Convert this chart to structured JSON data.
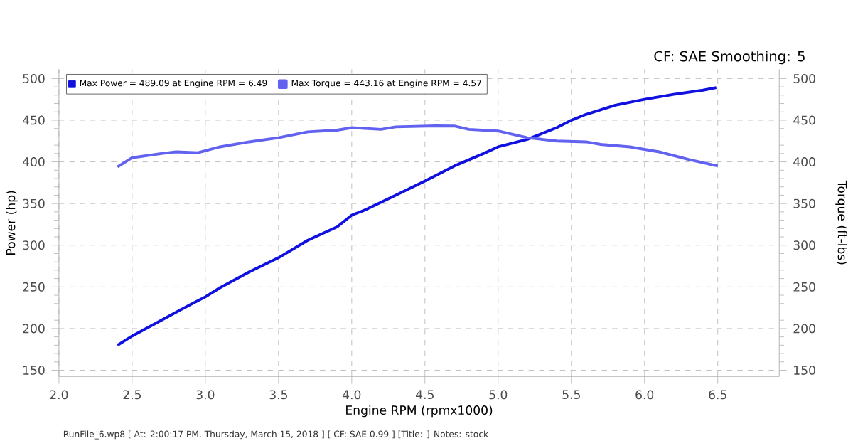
{
  "chart_data": {
    "type": "line",
    "title": "CF: SAE Smoothing: 5",
    "xlabel": "Engine RPM (rpmx1000)",
    "ylabel": "Power (hp)",
    "y2label": "Torque (ft-lbs)",
    "annotations": [
      "RunFile_6.wp8 [ At: 2:00:17 PM, Thursday, March 15, 2018 ] [ CF: SAE 0.99 ] [Title: ]  Notes: stock"
    ],
    "xlim": [
      2.0,
      6.92
    ],
    "ylim": [
      142.5,
      511
    ],
    "y2lim": [
      142.5,
      511
    ],
    "xticks": [
      {
        "value": 2.0,
        "label": "2.0"
      },
      {
        "value": 2.5,
        "label": "2.5"
      },
      {
        "value": 3.0,
        "label": "3.0"
      },
      {
        "value": 3.5,
        "label": "3.5"
      },
      {
        "value": 4.0,
        "label": "4.0"
      },
      {
        "value": 4.5,
        "label": "4.5"
      },
      {
        "value": 5.0,
        "label": "5.0"
      },
      {
        "value": 5.5,
        "label": "5.5"
      },
      {
        "value": 6.0,
        "label": "6.0"
      },
      {
        "value": 6.5,
        "label": "6.5"
      }
    ],
    "yticks": [
      150,
      200,
      250,
      300,
      350,
      400,
      450,
      500
    ],
    "y2ticks": [
      150,
      200,
      250,
      300,
      350,
      400,
      450,
      500
    ],
    "grid": true,
    "legend": "top left",
    "line_style": "solid",
    "series": [
      {
        "name": "Max Power = 489.09 at Engine RPM = 6.49",
        "color": "#1010e0",
        "x": [
          2.4,
          2.5,
          2.7,
          2.9,
          3.0,
          3.1,
          3.3,
          3.5,
          3.7,
          3.9,
          4.0,
          4.1,
          4.3,
          4.5,
          4.7,
          4.9,
          5.0,
          5.2,
          5.4,
          5.5,
          5.6,
          5.8,
          6.0,
          6.2,
          6.4,
          6.49
        ],
        "values": [
          180,
          191,
          210,
          229,
          238,
          249,
          268,
          285,
          306,
          322,
          336,
          343,
          360,
          377,
          395,
          410,
          418,
          427,
          441,
          450,
          457,
          468,
          475,
          481,
          486,
          489.09
        ]
      },
      {
        "name": "Max Torque = 443.16 at Engine RPM = 4.57",
        "color": "#6262f0",
        "axis": "y2",
        "x": [
          2.4,
          2.5,
          2.7,
          2.8,
          2.95,
          3.1,
          3.3,
          3.5,
          3.7,
          3.9,
          4.0,
          4.2,
          4.3,
          4.57,
          4.7,
          4.8,
          5.0,
          5.2,
          5.4,
          5.6,
          5.7,
          5.9,
          6.1,
          6.3,
          6.5
        ],
        "values": [
          394,
          405,
          410,
          412,
          411,
          418,
          424,
          429,
          436,
          438,
          441,
          439,
          442,
          443.16,
          443,
          439,
          437,
          429,
          425,
          424,
          421,
          418,
          412,
          403,
          395
        ]
      }
    ]
  }
}
